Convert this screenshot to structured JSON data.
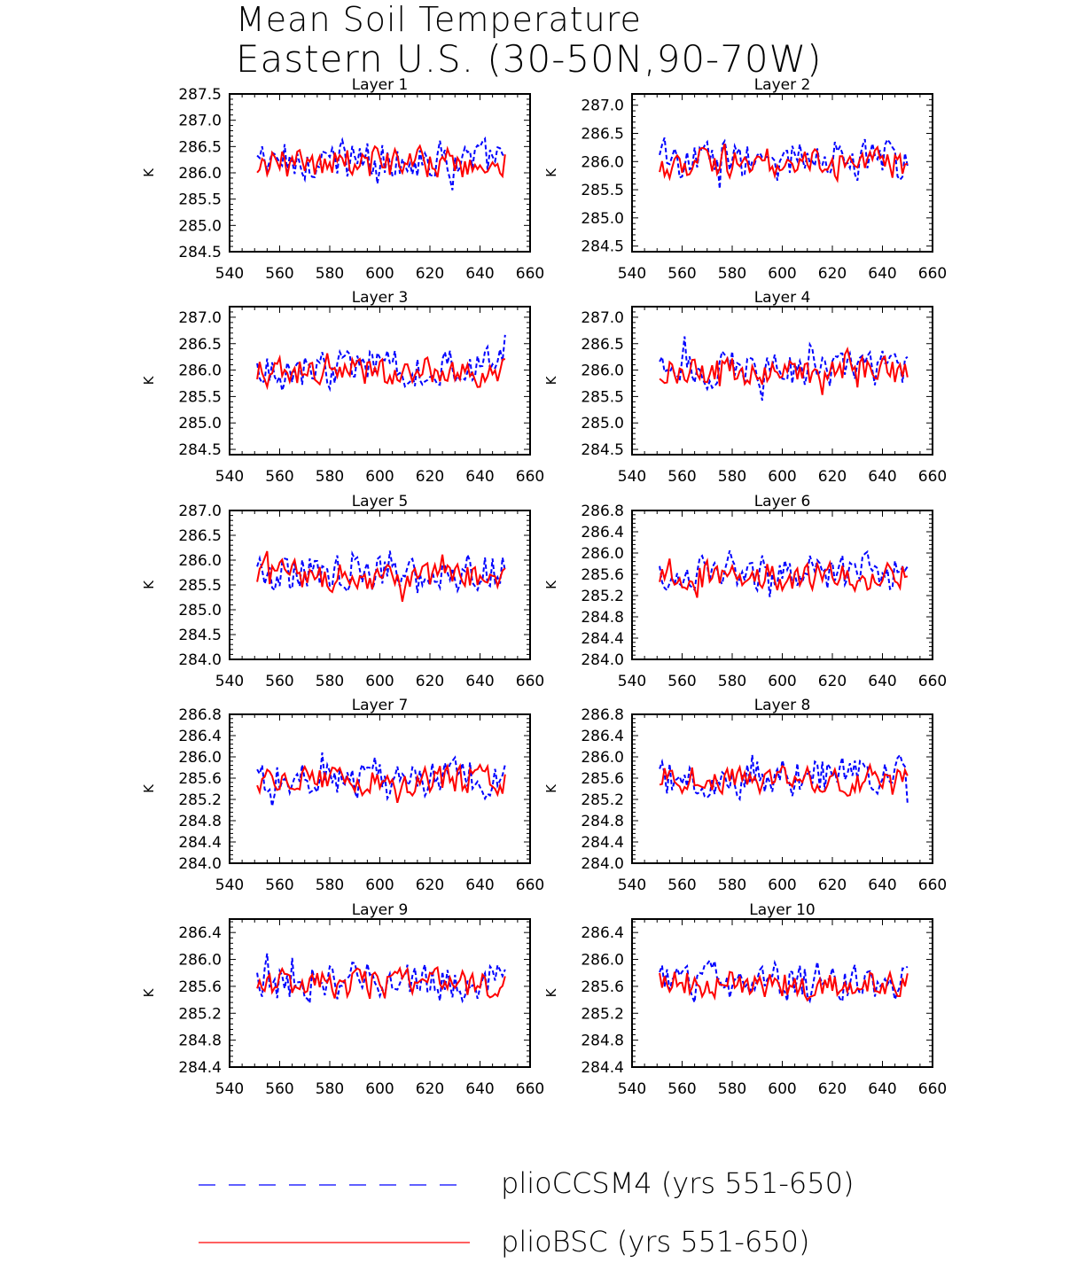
{
  "title": {
    "line1": "Mean Soil Temperature",
    "line2": "Eastern U.S. (30-50N,90-70W)"
  },
  "legend": [
    {
      "label": "plioCCSM4 (yrs 551-650)",
      "color": "#0000ff",
      "style": "dashed"
    },
    {
      "label": "plioBSC (yrs 551-650)",
      "color": "#ff0000",
      "style": "solid"
    }
  ],
  "colors": {
    "ccsm4": "#0000ff",
    "bsc": "#ff0000"
  },
  "chart_data": [
    {
      "type": "line",
      "title": "Layer 1",
      "ylabel": "K",
      "xlim": [
        540,
        660
      ],
      "ylim": [
        284.5,
        287.5
      ],
      "xticks": [
        540,
        560,
        580,
        600,
        620,
        640,
        660
      ],
      "yticks": [
        284.5,
        285.0,
        285.5,
        286.0,
        286.5,
        287.0,
        287.5
      ],
      "ytick_labels": [
        "284.5",
        "285.0",
        "285.5",
        "286.0",
        "286.5",
        "287.0",
        "287.5"
      ]
    },
    {
      "type": "line",
      "title": "Layer 2",
      "ylabel": "K",
      "xlim": [
        540,
        660
      ],
      "ylim": [
        284.4,
        287.2
      ],
      "xticks": [
        540,
        560,
        580,
        600,
        620,
        640,
        660
      ],
      "yticks": [
        284.5,
        285.0,
        285.5,
        286.0,
        286.5,
        287.0
      ],
      "ytick_labels": [
        "284.5",
        "285.0",
        "285.5",
        "286.0",
        "286.5",
        "287.0"
      ]
    },
    {
      "type": "line",
      "title": "Layer 3",
      "ylabel": "K",
      "xlim": [
        540,
        660
      ],
      "ylim": [
        284.4,
        287.2
      ],
      "xticks": [
        540,
        560,
        580,
        600,
        620,
        640,
        660
      ],
      "yticks": [
        284.5,
        285.0,
        285.5,
        286.0,
        286.5,
        287.0
      ],
      "ytick_labels": [
        "284.5",
        "285.0",
        "285.5",
        "286.0",
        "286.5",
        "287.0"
      ]
    },
    {
      "type": "line",
      "title": "Layer 4",
      "ylabel": "K",
      "xlim": [
        540,
        660
      ],
      "ylim": [
        284.4,
        287.2
      ],
      "xticks": [
        540,
        560,
        580,
        600,
        620,
        640,
        660
      ],
      "yticks": [
        284.5,
        285.0,
        285.5,
        286.0,
        286.5,
        287.0
      ],
      "ytick_labels": [
        "284.5",
        "285.0",
        "285.5",
        "286.0",
        "286.5",
        "287.0"
      ]
    },
    {
      "type": "line",
      "title": "Layer 5",
      "ylabel": "K",
      "xlim": [
        540,
        660
      ],
      "ylim": [
        284.0,
        287.0
      ],
      "xticks": [
        540,
        560,
        580,
        600,
        620,
        640,
        660
      ],
      "yticks": [
        284.0,
        284.5,
        285.0,
        285.5,
        286.0,
        286.5,
        287.0
      ],
      "ytick_labels": [
        "284.0",
        "284.5",
        "285.0",
        "285.5",
        "286.0",
        "286.5",
        "287.0"
      ]
    },
    {
      "type": "line",
      "title": "Layer 6",
      "ylabel": "K",
      "xlim": [
        540,
        660
      ],
      "ylim": [
        284.0,
        286.8
      ],
      "xticks": [
        540,
        560,
        580,
        600,
        620,
        640,
        660
      ],
      "yticks": [
        284.0,
        284.4,
        284.8,
        285.2,
        285.6,
        286.0,
        286.4,
        286.8
      ],
      "ytick_labels": [
        "284.0",
        "284.4",
        "284.8",
        "285.2",
        "285.6",
        "286.0",
        "286.4",
        "286.8"
      ]
    },
    {
      "type": "line",
      "title": "Layer 7",
      "ylabel": "K",
      "xlim": [
        540,
        660
      ],
      "ylim": [
        284.0,
        286.8
      ],
      "xticks": [
        540,
        560,
        580,
        600,
        620,
        640,
        660
      ],
      "yticks": [
        284.0,
        284.4,
        284.8,
        285.2,
        285.6,
        286.0,
        286.4,
        286.8
      ],
      "ytick_labels": [
        "284.0",
        "284.4",
        "284.8",
        "285.2",
        "285.6",
        "286.0",
        "286.4",
        "286.8"
      ]
    },
    {
      "type": "line",
      "title": "Layer 8",
      "ylabel": "K",
      "xlim": [
        540,
        660
      ],
      "ylim": [
        284.0,
        286.8
      ],
      "xticks": [
        540,
        560,
        580,
        600,
        620,
        640,
        660
      ],
      "yticks": [
        284.0,
        284.4,
        284.8,
        285.2,
        285.6,
        286.0,
        286.4,
        286.8
      ],
      "ytick_labels": [
        "284.0",
        "284.4",
        "284.8",
        "285.2",
        "285.6",
        "286.0",
        "286.4",
        "286.8"
      ]
    },
    {
      "type": "line",
      "title": "Layer 9",
      "ylabel": "K",
      "xlim": [
        540,
        660
      ],
      "ylim": [
        284.4,
        286.6
      ],
      "xticks": [
        540,
        560,
        580,
        600,
        620,
        640,
        660
      ],
      "yticks": [
        284.4,
        284.8,
        285.2,
        285.6,
        286.0,
        286.4
      ],
      "ytick_labels": [
        "284.4",
        "284.8",
        "285.2",
        "285.6",
        "286.0",
        "286.4"
      ]
    },
    {
      "type": "line",
      "title": "Layer 10",
      "ylabel": "K",
      "xlim": [
        540,
        660
      ],
      "ylim": [
        284.4,
        286.6
      ],
      "xticks": [
        540,
        560,
        580,
        600,
        620,
        640,
        660
      ],
      "yticks": [
        284.4,
        284.8,
        285.2,
        285.6,
        286.0,
        286.4
      ],
      "ytick_labels": [
        "284.4",
        "284.8",
        "285.2",
        "285.6",
        "286.0",
        "286.4"
      ]
    }
  ]
}
